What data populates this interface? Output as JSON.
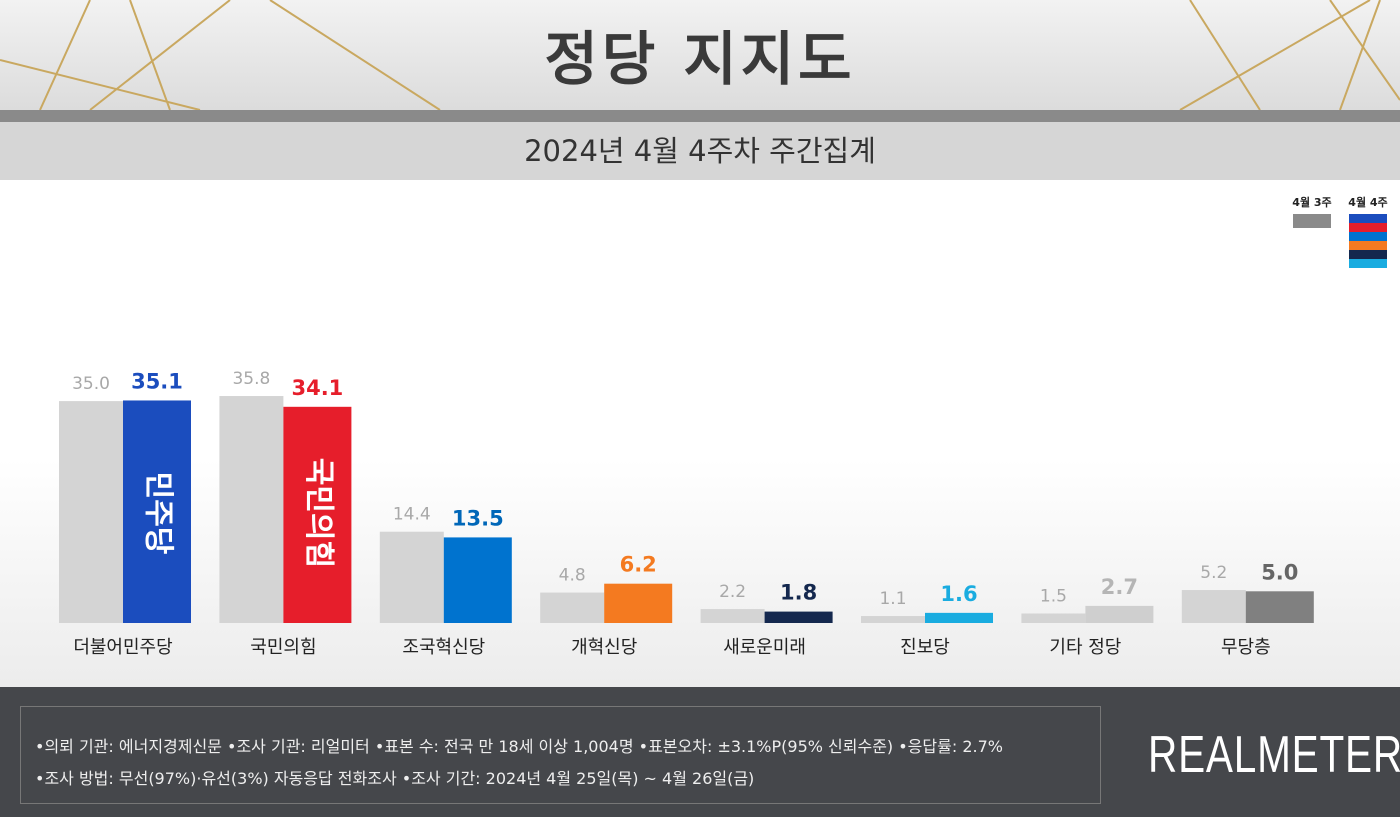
{
  "header": {
    "title": "정당 지지도",
    "subtitle": "2024년 4월 4주차 주간집계"
  },
  "chart_data": {
    "type": "bar",
    "categories": [
      "더불어민주당",
      "국민의힘",
      "조국혁신당",
      "개혁신당",
      "새로운미래",
      "진보당",
      "기타 정당",
      "무당층"
    ],
    "series": [
      {
        "name": "4월 3주",
        "values": [
          35.0,
          35.8,
          14.4,
          4.8,
          2.2,
          1.1,
          1.5,
          5.2
        ],
        "color": "#d4d4d4"
      },
      {
        "name": "4월 4주",
        "values": [
          35.1,
          34.1,
          13.5,
          6.2,
          1.8,
          1.6,
          2.7,
          5.0
        ],
        "colors": [
          "#1B4DBE",
          "#E61E2B",
          "#0073CF",
          "#F47A20",
          "#14284E",
          "#1AACE0",
          "#CFCFCF",
          "#808080"
        ],
        "label_colors": [
          "#1B4DBE",
          "#E61E2B",
          "#0067B8",
          "#F47A20",
          "#14284E",
          "#1AACE0",
          "#B5B5B5",
          "#666666"
        ]
      }
    ],
    "bar_logos": [
      "더불어민주당",
      "국민의힘"
    ],
    "ylim": [
      0,
      40
    ],
    "legend": "top-right",
    "grid": false
  },
  "footer": {
    "line1": "•의뢰 기관: 에너지경제신문  •조사 기관: 리얼미터 •표본 수: 전국 만 18세 이상 1,004명 •표본오차: ±3.1%P(95% 신뢰수준) •응답률: 2.7%",
    "line2": "•조사 방법: 무선(97%)·유선(3%) 자동응답 전화조사 •조사 기간: 2024년 4월 25일(목) ~ 4월 26일(금)",
    "logo": "REALMETER"
  }
}
